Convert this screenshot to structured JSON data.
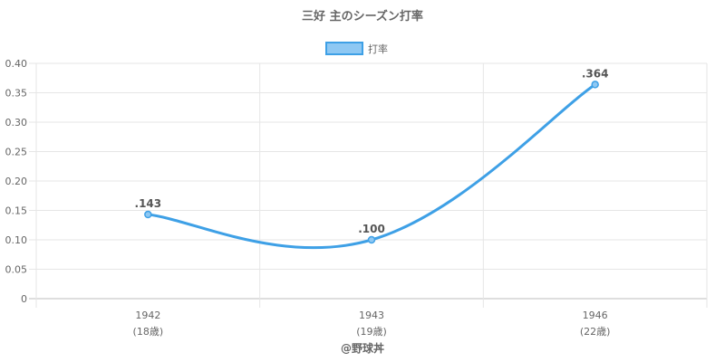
{
  "chart_data": {
    "type": "line",
    "title": "三好 主のシーズン打率",
    "legend": {
      "label": "打率",
      "position": "top"
    },
    "footer": "@野球丼",
    "categories": [
      "1942",
      "1943",
      "1946"
    ],
    "category_sublabels": [
      "(18歳)",
      "(19歳)",
      "(22歳)"
    ],
    "series": [
      {
        "name": "打率",
        "values": [
          0.143,
          0.1,
          0.364
        ],
        "data_labels": [
          ".143",
          ".100",
          ".364"
        ]
      }
    ],
    "ylim": [
      0,
      0.4
    ],
    "yticks": [
      "0",
      "0.05",
      "0.10",
      "0.15",
      "0.20",
      "0.25",
      "0.30",
      "0.35",
      "0.40"
    ],
    "grid": true,
    "colors": {
      "line": "#3ea0e6",
      "fill": "#8ec8f3",
      "grid": "#e6e6e6",
      "axis": "#bdbdbd",
      "text": "#666666",
      "title": "#666666",
      "label": "#555555"
    }
  }
}
